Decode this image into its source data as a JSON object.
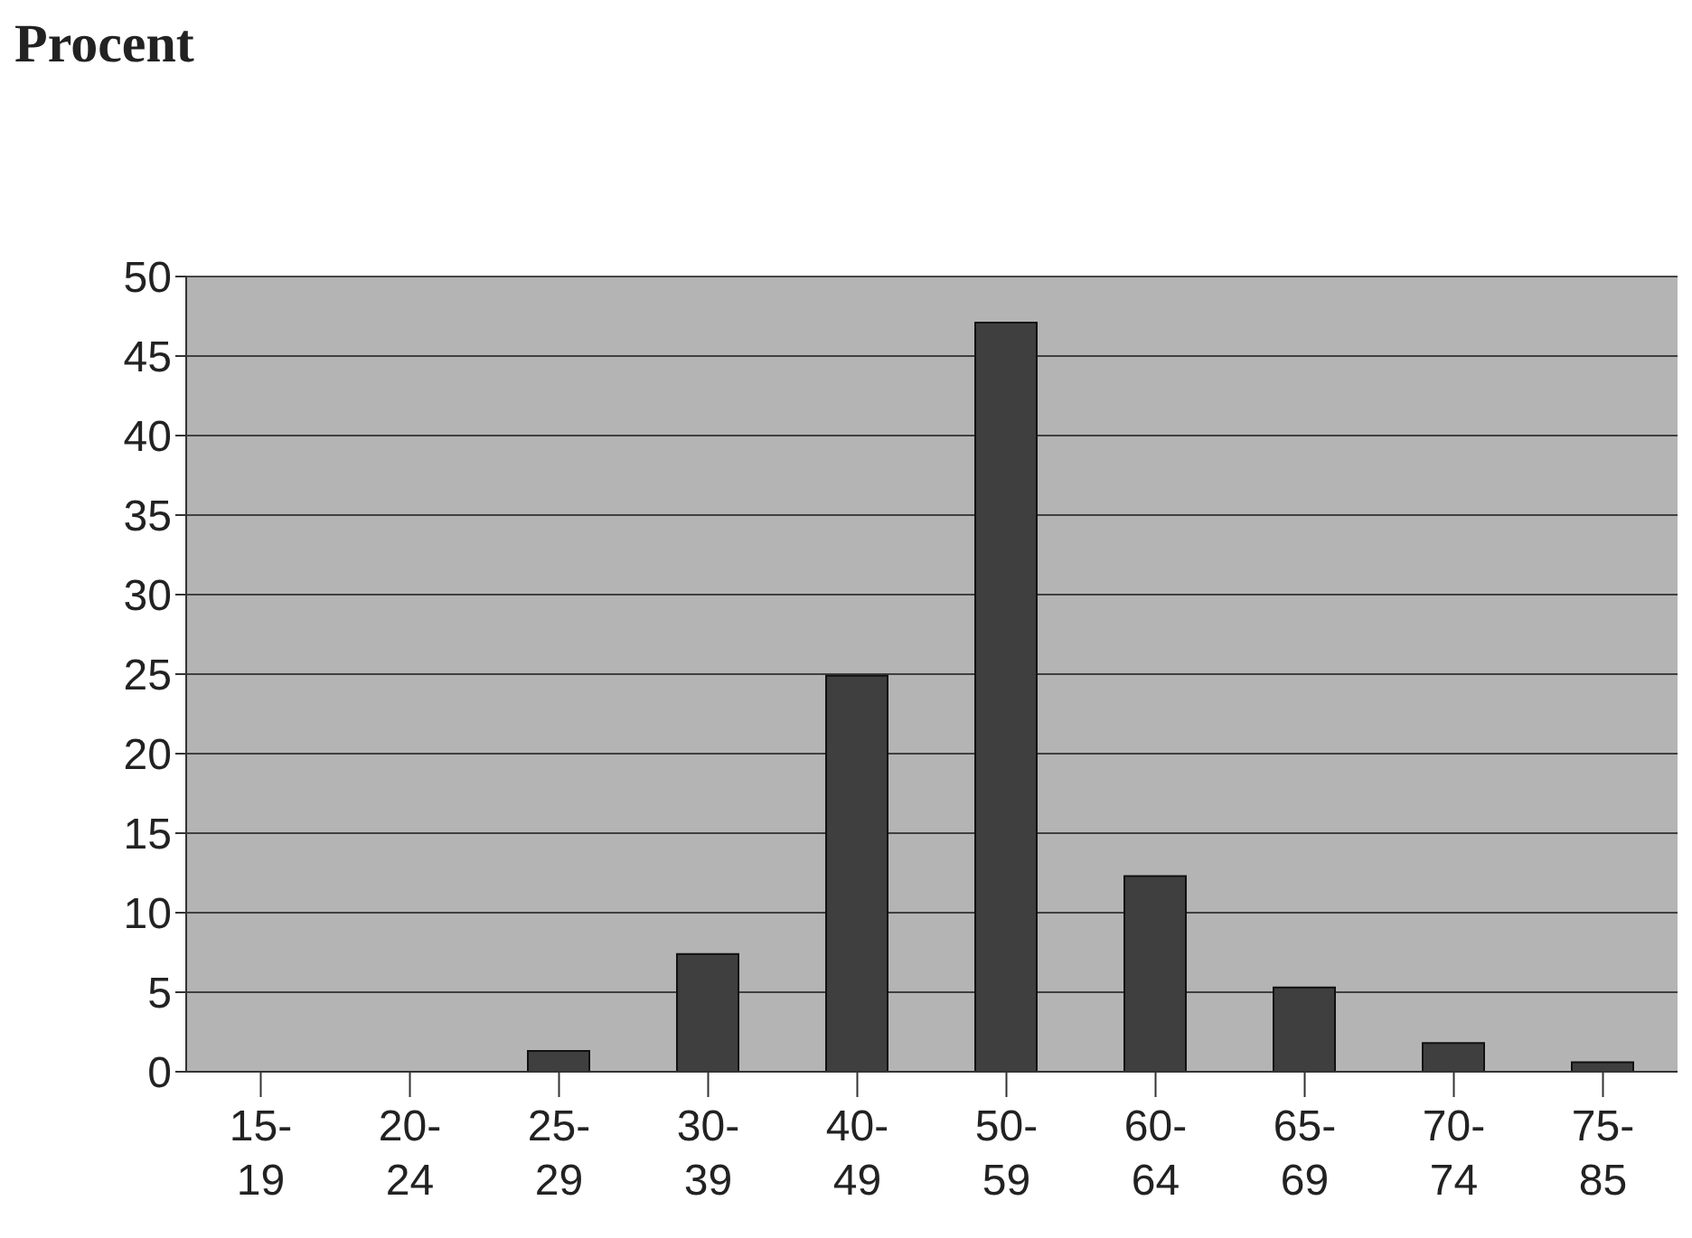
{
  "chart_data": {
    "type": "bar",
    "title": "Procent",
    "categories": [
      "15-19",
      "20-24",
      "25-29",
      "30-39",
      "40-49",
      "50-59",
      "60-64",
      "65-69",
      "70-74",
      "75-85"
    ],
    "values": [
      0,
      0,
      1.3,
      7.4,
      24.9,
      47.1,
      12.3,
      5.3,
      1.8,
      0.6
    ],
    "color": "#3f3f3f",
    "ylim": [
      0,
      50
    ],
    "yticks": [
      0,
      5,
      10,
      15,
      20,
      25,
      30,
      35,
      40,
      45,
      50
    ],
    "grid": "y"
  }
}
